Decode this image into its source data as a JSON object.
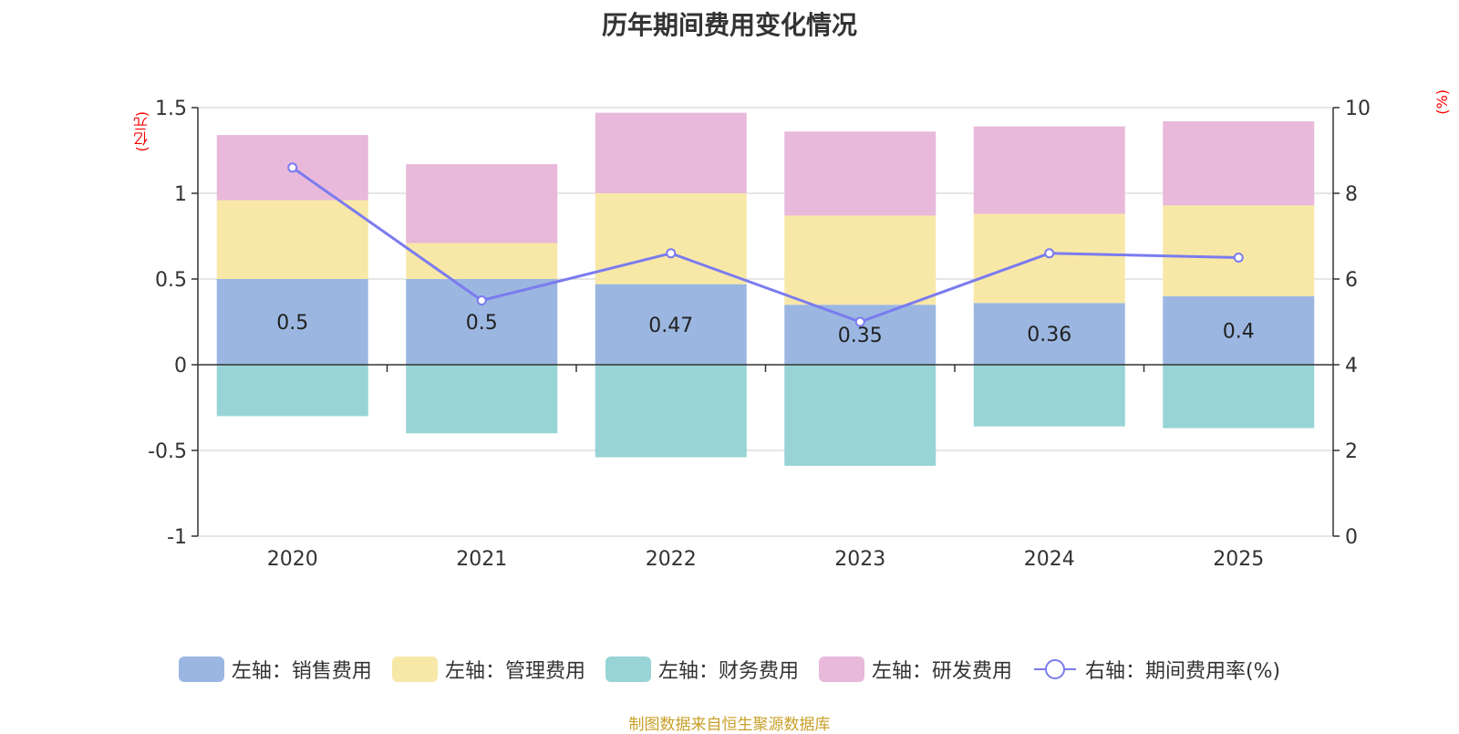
{
  "chart_data": {
    "type": "bar",
    "stacked": true,
    "title": "历年期间费用变化情况",
    "categories": [
      "2020",
      "2021",
      "2022",
      "2023",
      "2024",
      "2025"
    ],
    "series": [
      {
        "name": "左轴：销售费用",
        "axis": "left",
        "color": "#9bb7e1",
        "values": [
          0.5,
          0.5,
          0.47,
          0.35,
          0.36,
          0.4
        ],
        "labels": [
          "0.5",
          "0.5",
          "0.47",
          "0.35",
          "0.36",
          "0.4"
        ]
      },
      {
        "name": "左轴：管理费用",
        "axis": "left",
        "color": "#f8e8a8",
        "values": [
          0.46,
          0.21,
          0.53,
          0.52,
          0.52,
          0.53
        ]
      },
      {
        "name": "左轴：财务费用",
        "axis": "left",
        "color": "#98d4d5",
        "values": [
          -0.3,
          -0.4,
          -0.54,
          -0.59,
          -0.36,
          -0.37
        ]
      },
      {
        "name": "左轴：研发费用",
        "axis": "left",
        "color": "#e8b9da",
        "values": [
          0.38,
          0.46,
          0.47,
          0.49,
          0.51,
          0.49
        ]
      }
    ],
    "line_series": {
      "name": "右轴：期间费用率(%)",
      "axis": "right",
      "color": "#7b7bef",
      "values": [
        8.6,
        5.5,
        6.6,
        5.0,
        6.6,
        6.5
      ]
    },
    "left_axis": {
      "unit": "(亿元)",
      "ylim": [
        -1,
        1.5
      ],
      "ticks": [
        -1,
        -0.5,
        0,
        0.5,
        1,
        1.5
      ],
      "tick_labels": [
        "-1",
        "-0.5",
        "0",
        "0.5",
        "1",
        "1.5"
      ]
    },
    "right_axis": {
      "unit": "(%)",
      "ylim": [
        0,
        10
      ],
      "ticks": [
        0,
        2,
        4,
        6,
        8,
        10
      ],
      "tick_labels": [
        "0",
        "2",
        "4",
        "6",
        "8",
        "10"
      ]
    },
    "grid": true,
    "legend_position": "bottom"
  },
  "colors": {
    "unit": "#ff0000",
    "source": "#c8a028",
    "axis": "#333333",
    "grid": "#cccccc"
  },
  "source_text": "制图数据来自恒生聚源数据库"
}
